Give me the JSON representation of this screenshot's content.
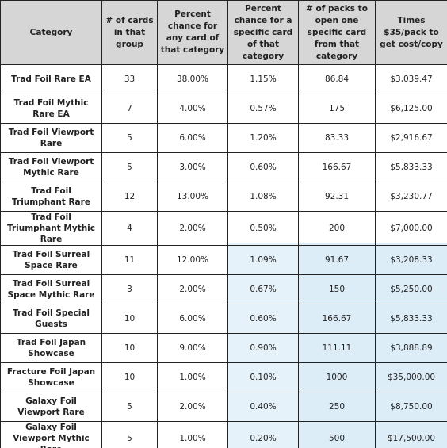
{
  "table": {
    "header": [
      "Category",
      "# of cards in that group",
      "Percent chance for any card of that category",
      "Percent chance for a specific card of that category",
      "# of packs to open one specific card from that category",
      "Times $35/pack to get cost/copy"
    ],
    "rows": [
      [
        "Trad Foil Rare EA",
        "33",
        "38.00%",
        "1.15%",
        "86.84",
        "$3,039.47"
      ],
      [
        "Trad Foil Mythic Rare EA",
        "7",
        "4.00%",
        "0.57%",
        "175",
        "$6,125.00"
      ],
      [
        "Trad Foil Viewport Rare",
        "5",
        "6.00%",
        "1.20%",
        "83.33",
        "$2,916.67"
      ],
      [
        "Trad Foil Viewport Mythic Rare",
        "5",
        "3.00%",
        "0.60%",
        "166.67",
        "$5,833.33"
      ],
      [
        "Trad Foil Triumphant Rare",
        "12",
        "13.00%",
        "1.08%",
        "92.31",
        "$3,230.77"
      ],
      [
        "Trad Foil Triumphant Mythic Rare",
        "4",
        "2.00%",
        "0.50%",
        "200",
        "$7,000.00"
      ],
      [
        "Trad Foil Surreal Space Rare",
        "11",
        "12.00%",
        "1.09%",
        "91.67",
        "$3,208.33"
      ],
      [
        "Trad Foil Surreal Space Mythic Rare",
        "3",
        "2.00%",
        "0.67%",
        "150",
        "$5,250.00"
      ],
      [
        "Trad Foil Special Guests",
        "10",
        "6.00%",
        "0.60%",
        "166.67",
        "$5,833.33"
      ],
      [
        "Trad Foil Japan Showcase",
        "10",
        "9.00%",
        "0.90%",
        "111.11",
        "$3,888.89"
      ],
      [
        "Fracture Foil Japan Showcase",
        "10",
        "1.00%",
        "0.10%",
        "1000",
        "$35,000.00"
      ],
      [
        "Galaxy Foil Viewport Rare",
        "5",
        "2.00%",
        "0.40%",
        "250",
        "$8,750.00"
      ],
      [
        "Galaxy Foil Viewport Mythic Rare",
        "5",
        "1.00%",
        "0.20%",
        "500",
        "$17,500.00"
      ]
    ]
  }
}
